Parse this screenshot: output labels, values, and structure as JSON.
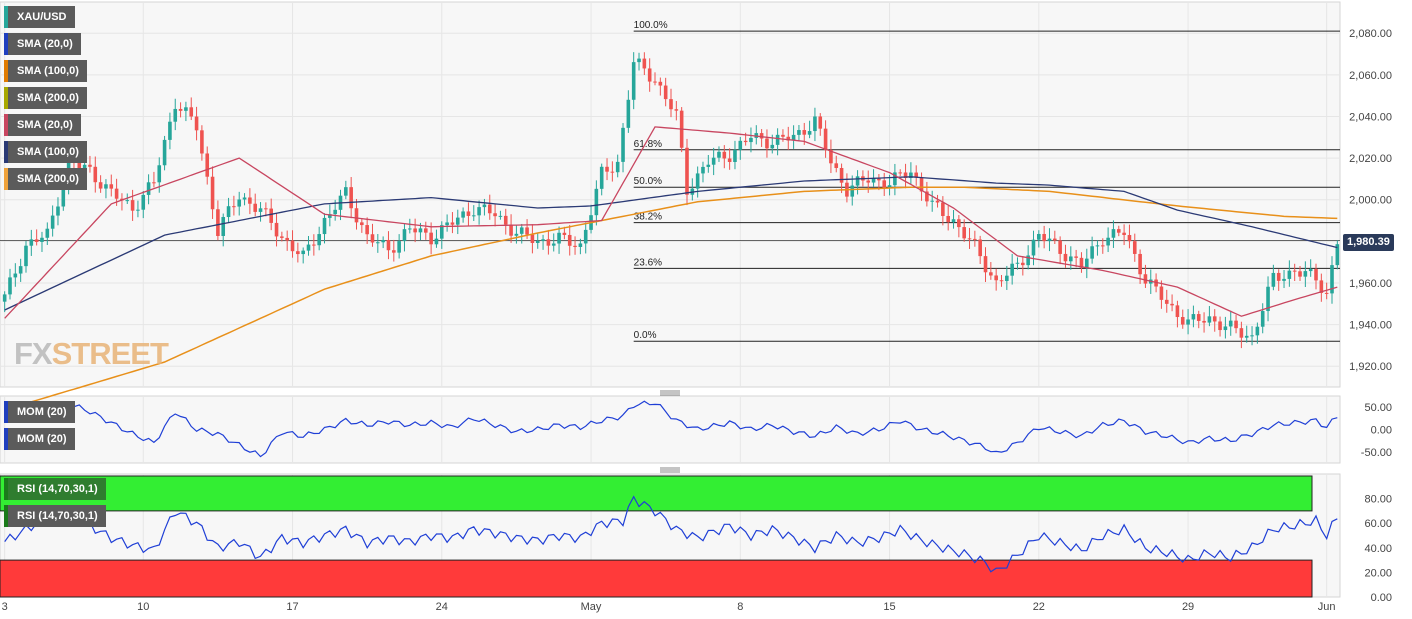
{
  "instrument": "XAU/USD",
  "last_price": "1,980.39",
  "watermark": {
    "part1": "FX",
    "part2": "STREET"
  },
  "indicators_main": [
    {
      "label": "XAU/USD",
      "color": "#26a69a"
    },
    {
      "label": "SMA (20,0)",
      "color": "#1f3fbf"
    },
    {
      "label": "SMA (100,0)",
      "color": "#e07b00"
    },
    {
      "label": "SMA (200,0)",
      "color": "#a8a800"
    },
    {
      "label": "SMA (20,0)",
      "color": "#c84660"
    },
    {
      "label": "SMA (100,0)",
      "color": "#2b3a75"
    },
    {
      "label": "SMA (200,0)",
      "color": "#f0a23a"
    }
  ],
  "indicators_mom": [
    {
      "label": "MOM (20)",
      "color": "#1f3fbf"
    },
    {
      "label": "MOM (20)",
      "color": "#1f3fbf"
    }
  ],
  "indicators_rsi": [
    {
      "label": "RSI (14,70,30,1)",
      "color": "#1a7a1a"
    },
    {
      "label": "RSI (14,70,30,1)",
      "color": "#1a7a1a"
    }
  ],
  "chart_data": {
    "type": "candlestick",
    "timeframe_note": "4-hour candles",
    "x_tick_labels": [
      "3",
      "10",
      "17",
      "24",
      "May",
      "8",
      "15",
      "22",
      "29",
      "Jun"
    ],
    "price_axis": {
      "ylim": [
        1910,
        2095
      ],
      "ticks": [
        1920,
        1940,
        1960,
        1980,
        2000,
        2020,
        2040,
        2060,
        2080
      ],
      "tick_labels": [
        "1,920.00",
        "1,940.00",
        "1,960.00",
        "1,980.00",
        "2,000.00",
        "2,020.00",
        "2,040.00",
        "2,060.00",
        "2,080.00"
      ]
    },
    "close_anchors": [
      [
        0,
        1953
      ],
      [
        4,
        1978
      ],
      [
        8,
        1983
      ],
      [
        12,
        2018
      ],
      [
        16,
        2014
      ],
      [
        20,
        2003
      ],
      [
        24,
        1996
      ],
      [
        28,
        2008
      ],
      [
        32,
        2047
      ],
      [
        36,
        2035
      ],
      [
        40,
        1985
      ],
      [
        44,
        2002
      ],
      [
        48,
        1995
      ],
      [
        52,
        1982
      ],
      [
        56,
        1972
      ],
      [
        60,
        1990
      ],
      [
        64,
        2003
      ],
      [
        68,
        1982
      ],
      [
        72,
        1976
      ],
      [
        76,
        1986
      ],
      [
        80,
        1982
      ],
      [
        84,
        1989
      ],
      [
        88,
        1996
      ],
      [
        92,
        1993
      ],
      [
        96,
        1984
      ],
      [
        100,
        1980
      ],
      [
        104,
        1981
      ],
      [
        108,
        1978
      ],
      [
        112,
        2012
      ],
      [
        115,
        2018
      ],
      [
        118,
        2066
      ],
      [
        122,
        2058
      ],
      [
        126,
        2040
      ],
      [
        128,
        2005
      ],
      [
        132,
        2018
      ],
      [
        136,
        2022
      ],
      [
        140,
        2030
      ],
      [
        144,
        2028
      ],
      [
        148,
        2030
      ],
      [
        152,
        2038
      ],
      [
        155,
        2018
      ],
      [
        158,
        2005
      ],
      [
        162,
        2010
      ],
      [
        166,
        2008
      ],
      [
        170,
        2014
      ],
      [
        174,
        1997
      ],
      [
        178,
        1990
      ],
      [
        182,
        1977
      ],
      [
        186,
        1960
      ],
      [
        190,
        1968
      ],
      [
        194,
        1983
      ],
      [
        198,
        1976
      ],
      [
        202,
        1968
      ],
      [
        206,
        1982
      ],
      [
        210,
        1984
      ],
      [
        214,
        1962
      ],
      [
        218,
        1950
      ],
      [
        222,
        1941
      ],
      [
        226,
        1943
      ],
      [
        230,
        1938
      ],
      [
        234,
        1934
      ],
      [
        238,
        1962
      ],
      [
        242,
        1966
      ],
      [
        246,
        1962
      ],
      [
        248,
        1955
      ],
      [
        250,
        1980
      ]
    ],
    "candle_count": 251,
    "sma_20_anchors": [
      [
        0,
        1943
      ],
      [
        20,
        1998
      ],
      [
        44,
        2020
      ],
      [
        60,
        1993
      ],
      [
        80,
        1987
      ],
      [
        100,
        1988
      ],
      [
        112,
        1990
      ],
      [
        122,
        2035
      ],
      [
        136,
        2032
      ],
      [
        150,
        2028
      ],
      [
        166,
        2013
      ],
      [
        178,
        1996
      ],
      [
        190,
        1973
      ],
      [
        206,
        1966
      ],
      [
        220,
        1958
      ],
      [
        232,
        1944
      ],
      [
        242,
        1952
      ],
      [
        250,
        1958
      ]
    ],
    "sma_100_anchors": [
      [
        0,
        1947
      ],
      [
        30,
        1983
      ],
      [
        60,
        1998
      ],
      [
        80,
        2001
      ],
      [
        100,
        1996
      ],
      [
        110,
        1997
      ],
      [
        130,
        2004
      ],
      [
        150,
        2009
      ],
      [
        170,
        2011
      ],
      [
        186,
        2008
      ],
      [
        196,
        2007
      ],
      [
        210,
        2004
      ],
      [
        220,
        1995
      ],
      [
        234,
        1987
      ],
      [
        250,
        1977
      ]
    ],
    "sma_200_anchors": [
      [
        0,
        1899
      ],
      [
        30,
        1922
      ],
      [
        60,
        1957
      ],
      [
        80,
        1973
      ],
      [
        100,
        1984
      ],
      [
        112,
        1990
      ],
      [
        130,
        1999
      ],
      [
        150,
        2004
      ],
      [
        170,
        2006
      ],
      [
        180,
        2006
      ],
      [
        196,
        2004
      ],
      [
        220,
        1997
      ],
      [
        240,
        1992
      ],
      [
        250,
        1991
      ]
    ],
    "fibonacci": [
      {
        "label": "100.0%",
        "price": 2081
      },
      {
        "label": "61.8%",
        "price": 2024
      },
      {
        "label": "50.0%",
        "price": 2006
      },
      {
        "label": "38.2%",
        "price": 1989
      },
      {
        "label": "23.6%",
        "price": 1967
      },
      {
        "label": "0.0%",
        "price": 1932
      }
    ],
    "current_price_line": 1980.39,
    "momentum": {
      "ylim": [
        -75,
        75
      ],
      "ticks": [
        -50,
        0,
        50
      ],
      "tick_labels": [
        "-50.00",
        "0.00",
        "50.00"
      ],
      "anchors": [
        [
          0,
          20
        ],
        [
          6,
          45
        ],
        [
          12,
          58
        ],
        [
          16,
          40
        ],
        [
          20,
          15
        ],
        [
          24,
          -10
        ],
        [
          28,
          -30
        ],
        [
          32,
          40
        ],
        [
          36,
          0
        ],
        [
          40,
          -10
        ],
        [
          44,
          -35
        ],
        [
          48,
          -60
        ],
        [
          52,
          -5
        ],
        [
          56,
          -15
        ],
        [
          60,
          0
        ],
        [
          64,
          20
        ],
        [
          68,
          10
        ],
        [
          72,
          18
        ],
        [
          76,
          10
        ],
        [
          80,
          15
        ],
        [
          84,
          5
        ],
        [
          88,
          25
        ],
        [
          92,
          10
        ],
        [
          96,
          -5
        ],
        [
          100,
          0
        ],
        [
          104,
          10
        ],
        [
          108,
          5
        ],
        [
          112,
          20
        ],
        [
          116,
          30
        ],
        [
          118,
          55
        ],
        [
          122,
          60
        ],
        [
          126,
          20
        ],
        [
          130,
          0
        ],
        [
          136,
          15
        ],
        [
          140,
          0
        ],
        [
          144,
          10
        ],
        [
          148,
          -5
        ],
        [
          152,
          -15
        ],
        [
          156,
          5
        ],
        [
          160,
          -10
        ],
        [
          164,
          0
        ],
        [
          168,
          20
        ],
        [
          172,
          0
        ],
        [
          176,
          -10
        ],
        [
          180,
          -25
        ],
        [
          184,
          -40
        ],
        [
          186,
          -55
        ],
        [
          190,
          -30
        ],
        [
          194,
          5
        ],
        [
          198,
          -5
        ],
        [
          202,
          -15
        ],
        [
          206,
          10
        ],
        [
          210,
          20
        ],
        [
          214,
          -5
        ],
        [
          218,
          -15
        ],
        [
          222,
          -30
        ],
        [
          226,
          -20
        ],
        [
          230,
          -25
        ],
        [
          234,
          -10
        ],
        [
          238,
          10
        ],
        [
          242,
          15
        ],
        [
          246,
          20
        ],
        [
          248,
          5
        ],
        [
          250,
          30
        ]
      ]
    },
    "rsi": {
      "ylim": [
        0,
        100
      ],
      "ticks": [
        0,
        20,
        40,
        60,
        80
      ],
      "tick_labels": [
        "0.00",
        "20.00",
        "40.00",
        "60.00",
        "80.00"
      ],
      "overbought": 70,
      "oversold": 30,
      "anchors": [
        [
          0,
          45
        ],
        [
          6,
          60
        ],
        [
          12,
          68
        ],
        [
          16,
          58
        ],
        [
          20,
          48
        ],
        [
          24,
          42
        ],
        [
          28,
          38
        ],
        [
          32,
          70
        ],
        [
          36,
          60
        ],
        [
          40,
          40
        ],
        [
          44,
          45
        ],
        [
          48,
          32
        ],
        [
          52,
          48
        ],
        [
          56,
          44
        ],
        [
          60,
          50
        ],
        [
          64,
          55
        ],
        [
          68,
          44
        ],
        [
          72,
          48
        ],
        [
          76,
          45
        ],
        [
          80,
          50
        ],
        [
          84,
          48
        ],
        [
          88,
          55
        ],
        [
          92,
          52
        ],
        [
          96,
          48
        ],
        [
          100,
          46
        ],
        [
          104,
          50
        ],
        [
          108,
          48
        ],
        [
          112,
          60
        ],
        [
          116,
          62
        ],
        [
          118,
          80
        ],
        [
          122,
          70
        ],
        [
          126,
          55
        ],
        [
          130,
          48
        ],
        [
          136,
          58
        ],
        [
          140,
          50
        ],
        [
          144,
          55
        ],
        [
          148,
          48
        ],
        [
          152,
          40
        ],
        [
          156,
          50
        ],
        [
          160,
          44
        ],
        [
          164,
          48
        ],
        [
          168,
          55
        ],
        [
          172,
          46
        ],
        [
          176,
          40
        ],
        [
          180,
          35
        ],
        [
          184,
          28
        ],
        [
          186,
          20
        ],
        [
          190,
          34
        ],
        [
          194,
          50
        ],
        [
          198,
          44
        ],
        [
          202,
          38
        ],
        [
          206,
          50
        ],
        [
          210,
          55
        ],
        [
          214,
          40
        ],
        [
          218,
          36
        ],
        [
          222,
          30
        ],
        [
          226,
          36
        ],
        [
          230,
          32
        ],
        [
          234,
          40
        ],
        [
          238,
          55
        ],
        [
          242,
          58
        ],
        [
          246,
          62
        ],
        [
          248,
          50
        ],
        [
          250,
          65
        ]
      ]
    }
  }
}
